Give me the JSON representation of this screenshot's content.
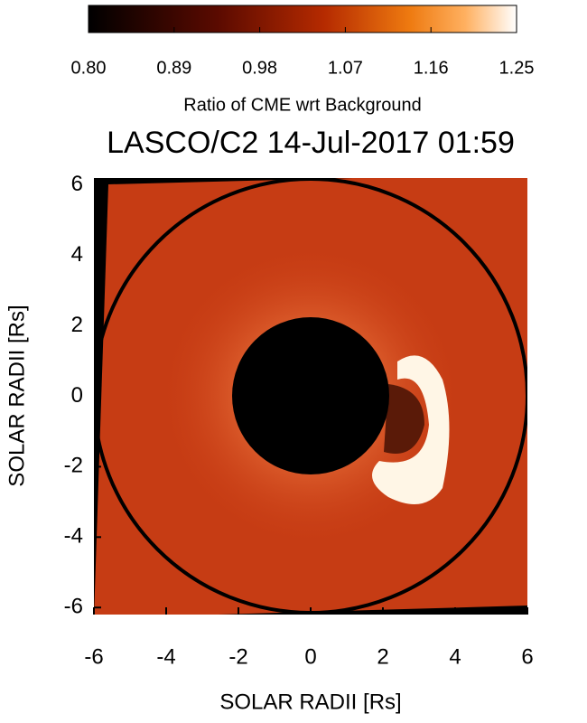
{
  "chart_data": {
    "type": "image",
    "title": "LASCO/C2 14-Jul-2017 01:59",
    "colorbar_label": "Ratio of CME wrt Background",
    "clim": [
      0.8,
      1.25
    ],
    "cticks": [
      {
        "value": 0.8,
        "label": "0.80"
      },
      0.89,
      0.98,
      1.07,
      1.16,
      1.25
    ],
    "xlabel": "SOLAR RADII [Rs]",
    "ylabel": "SOLAR RADII [Rs]",
    "xlim": [
      -6,
      6
    ],
    "ylim": [
      -6.2,
      6.2
    ],
    "xticks": [
      -6,
      -4,
      -2,
      0,
      2,
      4,
      6
    ],
    "yticks": [
      -6,
      -4,
      -2,
      0,
      2,
      4,
      6
    ]
  }
}
